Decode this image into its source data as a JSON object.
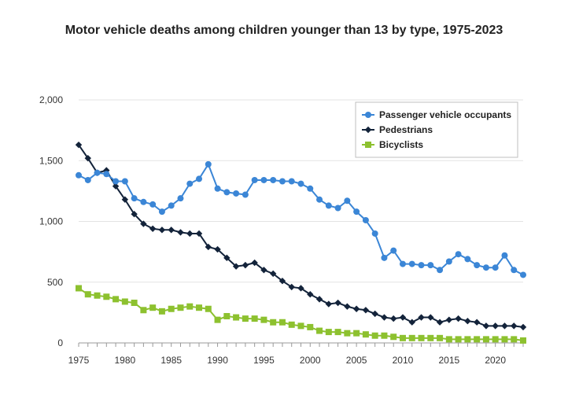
{
  "chart_data": {
    "type": "line",
    "title": "Motor vehicle deaths among children younger than 13 by type, 1975-2023",
    "xlabel": "",
    "ylabel": "",
    "xlim": [
      1975,
      2023
    ],
    "ylim": [
      0,
      2000
    ],
    "y_ticks": [
      0,
      500,
      1000,
      1500,
      2000
    ],
    "y_tick_labels": [
      "0",
      "500",
      "1,000",
      "1,500",
      "2,000"
    ],
    "x_ticks": [
      1975,
      1980,
      1985,
      1990,
      1995,
      2000,
      2005,
      2010,
      2015,
      2020
    ],
    "x_tick_labels": [
      "1975",
      "1980",
      "1985",
      "1990",
      "1995",
      "2000",
      "2005",
      "2010",
      "2015",
      "2020"
    ],
    "grid": "horizontal",
    "legend_position": "top-right",
    "x": [
      1975,
      1976,
      1977,
      1978,
      1979,
      1980,
      1981,
      1982,
      1983,
      1984,
      1985,
      1986,
      1987,
      1988,
      1989,
      1990,
      1991,
      1992,
      1993,
      1994,
      1995,
      1996,
      1997,
      1998,
      1999,
      2000,
      2001,
      2002,
      2003,
      2004,
      2005,
      2006,
      2007,
      2008,
      2009,
      2010,
      2011,
      2012,
      2013,
      2014,
      2015,
      2016,
      2017,
      2018,
      2019,
      2020,
      2021,
      2022,
      2023
    ],
    "series": [
      {
        "name": "Passenger vehicle occupants",
        "color": "#3b86d6",
        "marker": "circle",
        "values": [
          1380,
          1340,
          1400,
          1390,
          1330,
          1330,
          1190,
          1160,
          1140,
          1080,
          1130,
          1190,
          1310,
          1350,
          1470,
          1270,
          1240,
          1230,
          1220,
          1340,
          1340,
          1340,
          1330,
          1330,
          1310,
          1270,
          1180,
          1130,
          1110,
          1170,
          1080,
          1010,
          900,
          700,
          760,
          650,
          650,
          640,
          640,
          600,
          670,
          730,
          690,
          640,
          620,
          620,
          720,
          600,
          560
        ]
      },
      {
        "name": "Pedestrians",
        "color": "#13233a",
        "marker": "diamond",
        "values": [
          1630,
          1520,
          1400,
          1420,
          1290,
          1180,
          1060,
          980,
          940,
          930,
          930,
          910,
          900,
          900,
          790,
          770,
          700,
          630,
          640,
          660,
          600,
          570,
          510,
          460,
          450,
          400,
          360,
          320,
          330,
          300,
          280,
          270,
          240,
          210,
          200,
          210,
          170,
          210,
          210,
          170,
          190,
          200,
          180,
          170,
          140,
          140,
          140,
          140,
          130
        ]
      },
      {
        "name": "Bicyclists",
        "color": "#8dc12f",
        "marker": "square",
        "values": [
          450,
          400,
          390,
          380,
          360,
          340,
          330,
          270,
          290,
          260,
          280,
          290,
          300,
          290,
          280,
          190,
          220,
          210,
          200,
          200,
          190,
          170,
          170,
          150,
          140,
          130,
          100,
          90,
          90,
          80,
          80,
          70,
          60,
          60,
          50,
          40,
          40,
          40,
          40,
          40,
          30,
          30,
          30,
          30,
          30,
          30,
          30,
          30,
          20
        ]
      }
    ]
  }
}
